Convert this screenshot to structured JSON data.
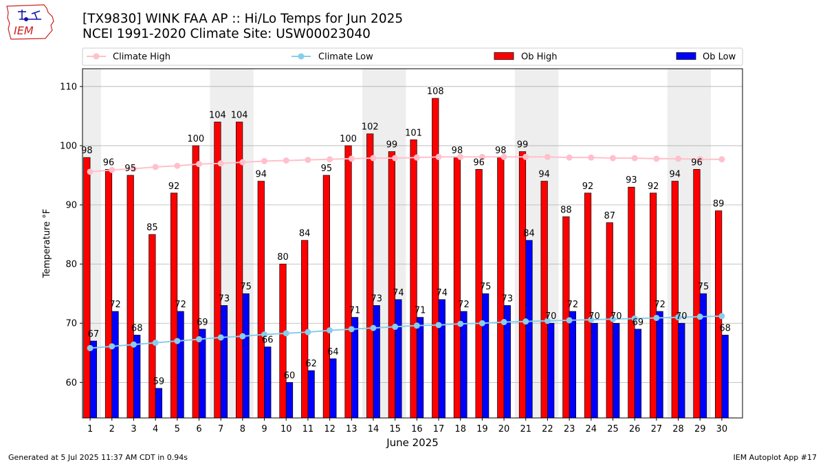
{
  "header": {
    "title_line1": "[TX9830] WINK FAA AP :: Hi/Lo Temps for Jun 2025",
    "title_line2": "NCEI 1991-2020 Climate Site: USW00023040",
    "logo_text": "IEM"
  },
  "footer": {
    "generated": "Generated at 5 Jul 2025 11:37 AM CDT in 0.94s",
    "app": "IEM Autoplot App #17"
  },
  "colors": {
    "ob_high": "#ff0000",
    "ob_low": "#0000ff",
    "climate_high": "#ffc0cb",
    "climate_low": "#87ceeb",
    "weekend_shade": "#eeeeee",
    "logo": "#cc2222"
  },
  "chart_data": {
    "type": "bar",
    "xlabel": "June 2025",
    "ylabel": "Temperature °F",
    "ylim": [
      54,
      113
    ],
    "yticks": [
      60,
      70,
      80,
      90,
      100,
      110
    ],
    "grid": true,
    "legend_position": "top",
    "categories": [
      "1",
      "2",
      "3",
      "4",
      "5",
      "6",
      "7",
      "8",
      "9",
      "10",
      "11",
      "12",
      "13",
      "14",
      "15",
      "16",
      "17",
      "18",
      "19",
      "20",
      "21",
      "22",
      "23",
      "24",
      "25",
      "26",
      "27",
      "28",
      "29",
      "30"
    ],
    "weekend_days": [
      1,
      7,
      8,
      14,
      15,
      21,
      22,
      28,
      29
    ],
    "legend": [
      "Climate High",
      "Climate Low",
      "Ob High",
      "Ob Low"
    ],
    "series": [
      {
        "name": "Ob High",
        "kind": "bar",
        "values": [
          98,
          96,
          95,
          85,
          92,
          100,
          104,
          104,
          94,
          80,
          84,
          95,
          100,
          102,
          99,
          101,
          108,
          98,
          96,
          98,
          99,
          94,
          88,
          92,
          87,
          93,
          92,
          94,
          96,
          89
        ]
      },
      {
        "name": "Ob Low",
        "kind": "bar",
        "values": [
          67,
          72,
          68,
          59,
          72,
          69,
          73,
          75,
          66,
          60,
          62,
          64,
          71,
          73,
          74,
          71,
          74,
          72,
          75,
          73,
          84,
          70,
          72,
          70,
          70,
          69,
          72,
          70,
          75,
          68
        ]
      },
      {
        "name": "Climate High",
        "kind": "line",
        "values": [
          95.6,
          95.9,
          96.1,
          96.4,
          96.6,
          96.9,
          97.0,
          97.2,
          97.4,
          97.5,
          97.6,
          97.7,
          97.8,
          97.9,
          97.9,
          98.0,
          98.1,
          98.1,
          98.1,
          98.1,
          98.1,
          98.1,
          98.0,
          98.0,
          97.9,
          97.9,
          97.8,
          97.8,
          97.7,
          97.7
        ]
      },
      {
        "name": "Climate Low",
        "kind": "line",
        "values": [
          65.8,
          66.1,
          66.4,
          66.7,
          67.0,
          67.3,
          67.6,
          67.8,
          68.1,
          68.3,
          68.5,
          68.8,
          69.0,
          69.2,
          69.4,
          69.6,
          69.7,
          69.9,
          70.0,
          70.2,
          70.3,
          70.4,
          70.5,
          70.6,
          70.7,
          70.8,
          70.9,
          71.0,
          71.1,
          71.2
        ]
      }
    ]
  }
}
